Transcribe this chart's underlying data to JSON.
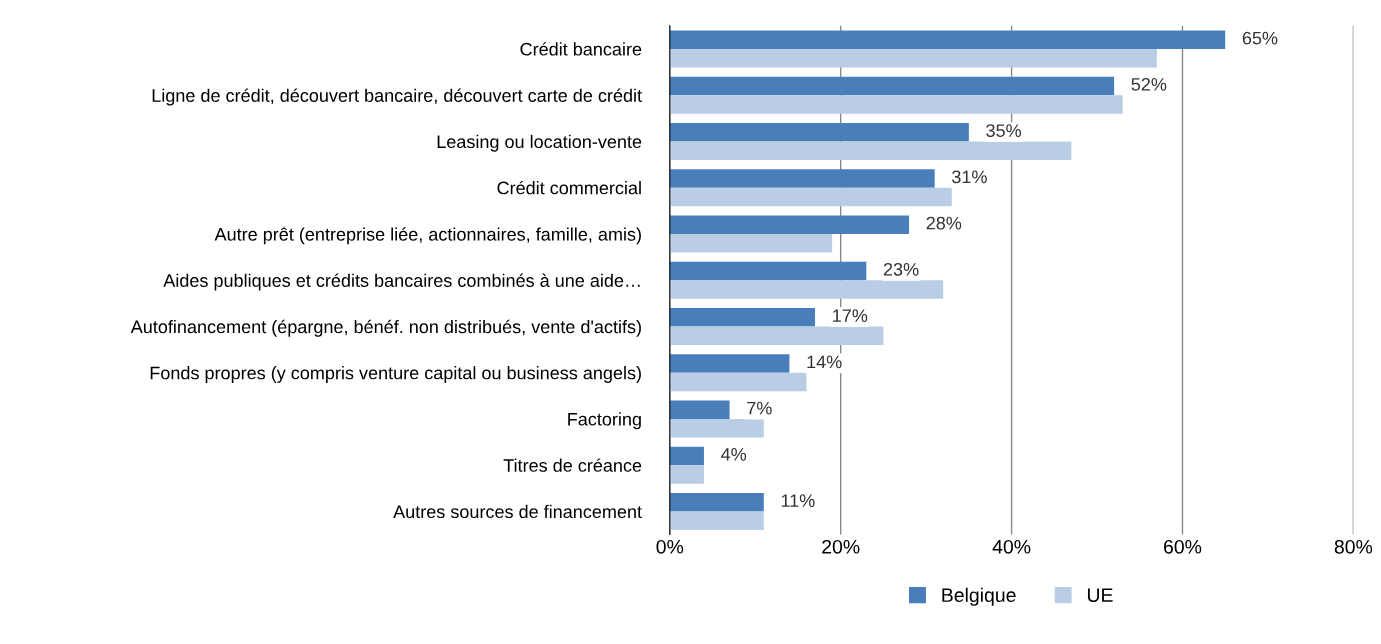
{
  "chart_data": {
    "type": "bar",
    "orientation": "horizontal",
    "categories": [
      "Crédit bancaire",
      "Ligne de crédit, découvert bancaire, découvert carte de crédit",
      "Leasing ou location-vente",
      "Crédit commercial",
      "Autre prêt (entreprise liée, actionnaires, famille, amis)",
      "Aides publiques et crédits bancaires combinés à une aide…",
      "Autofinancement (épargne, bénéf. non distribués, vente d'actifs)",
      "Fonds propres (y compris venture capital ou business angels)",
      "Factoring",
      "Titres de créance",
      "Autres sources de financement"
    ],
    "series": [
      {
        "name": "Belgique",
        "color": "#4a7ebb",
        "values": [
          65,
          52,
          35,
          31,
          28,
          23,
          17,
          14,
          7,
          4,
          11
        ],
        "value_labels": [
          "65%",
          "52%",
          "35%",
          "31%",
          "28%",
          "23%",
          "17%",
          "14%",
          "7%",
          "4%",
          "11%"
        ]
      },
      {
        "name": "UE",
        "color": "#b9cde5",
        "values": [
          57,
          53,
          47,
          33,
          19,
          32,
          25,
          16,
          11,
          4,
          11
        ]
      }
    ],
    "xlim": [
      0,
      80
    ],
    "xticks": [
      {
        "value": 0,
        "label": "0%"
      },
      {
        "value": 20,
        "label": "20%"
      },
      {
        "value": 40,
        "label": "40%"
      },
      {
        "value": 60,
        "label": "60%"
      },
      {
        "value": 80,
        "label": "80%"
      }
    ],
    "grid": "x",
    "legend": "bottom"
  }
}
